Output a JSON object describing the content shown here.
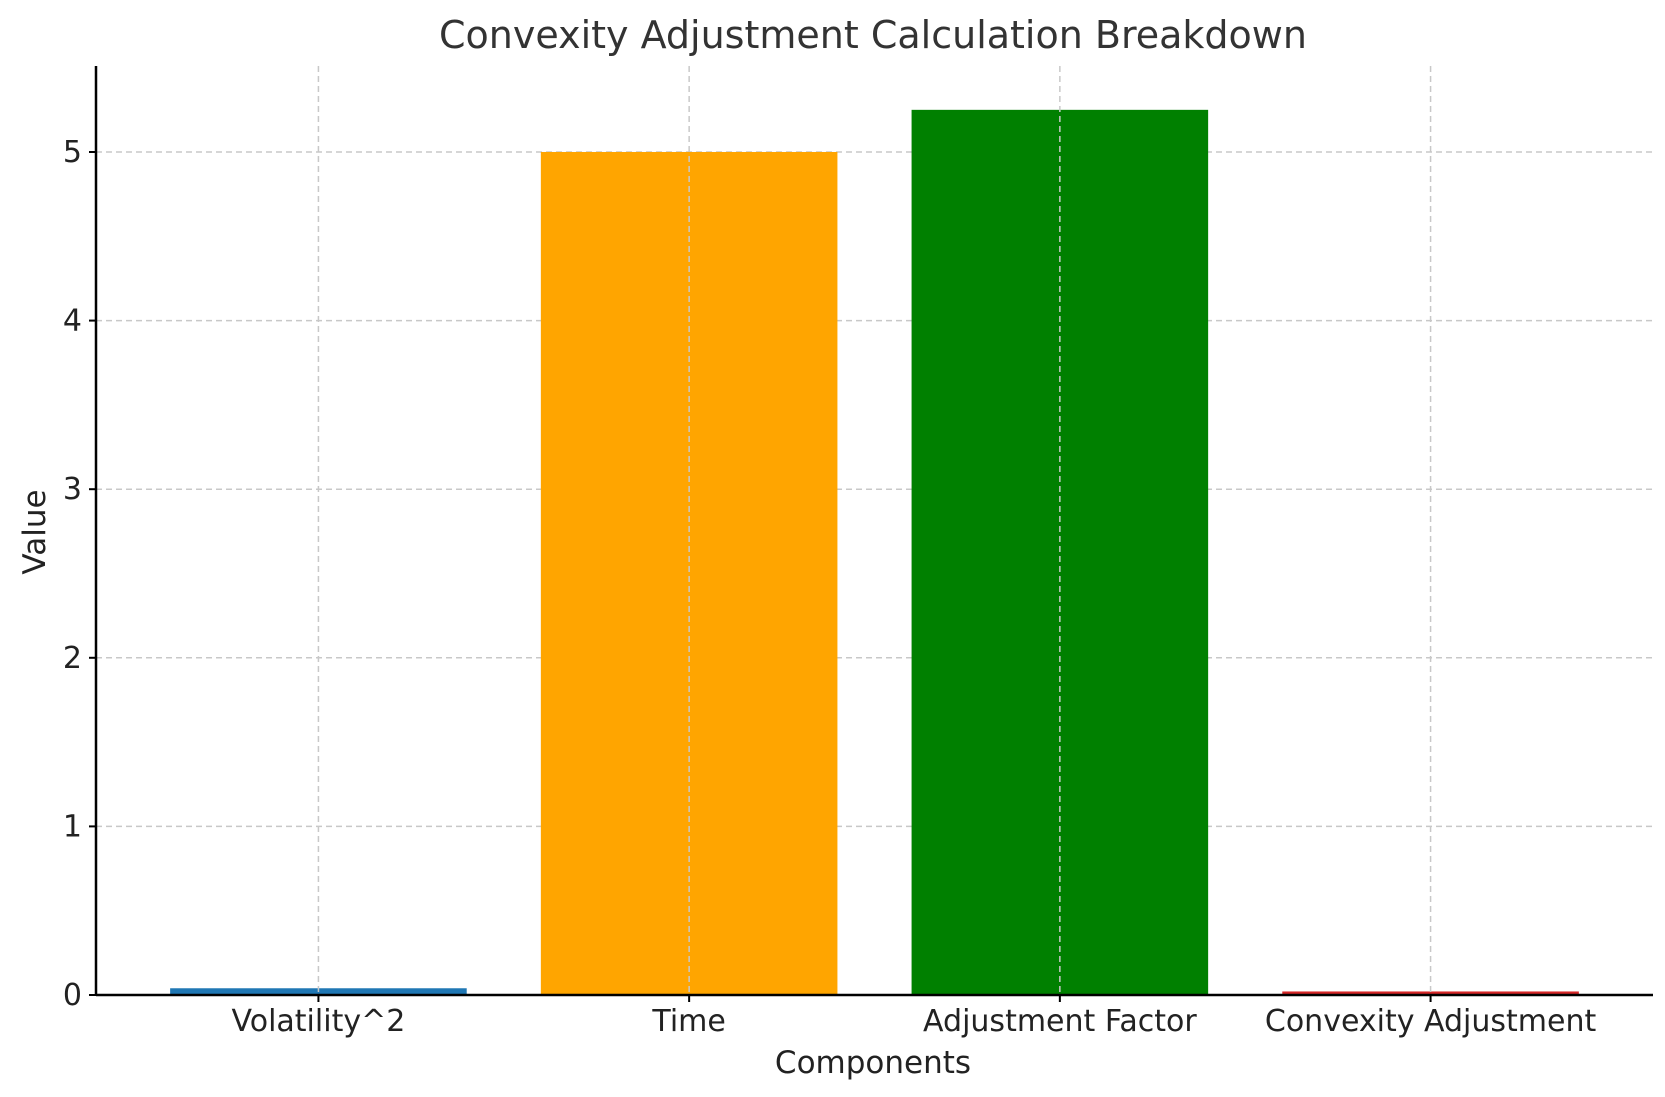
{
  "chart_data": {
    "type": "bar",
    "title": "Convexity Adjustment Calculation Breakdown",
    "xlabel": "Components",
    "ylabel": "Value",
    "categories": [
      "Volatility^2",
      "Time",
      "Adjustment Factor",
      "Convexity Adjustment"
    ],
    "values": [
      0.04,
      5.0,
      5.25,
      0.021
    ],
    "colors": [
      "#1f77b4",
      "#ffa500",
      "#008000",
      "#d62728"
    ],
    "ylim": [
      0,
      5.51
    ],
    "yticks": [
      0,
      1,
      2,
      3,
      4,
      5
    ],
    "grid": true
  }
}
